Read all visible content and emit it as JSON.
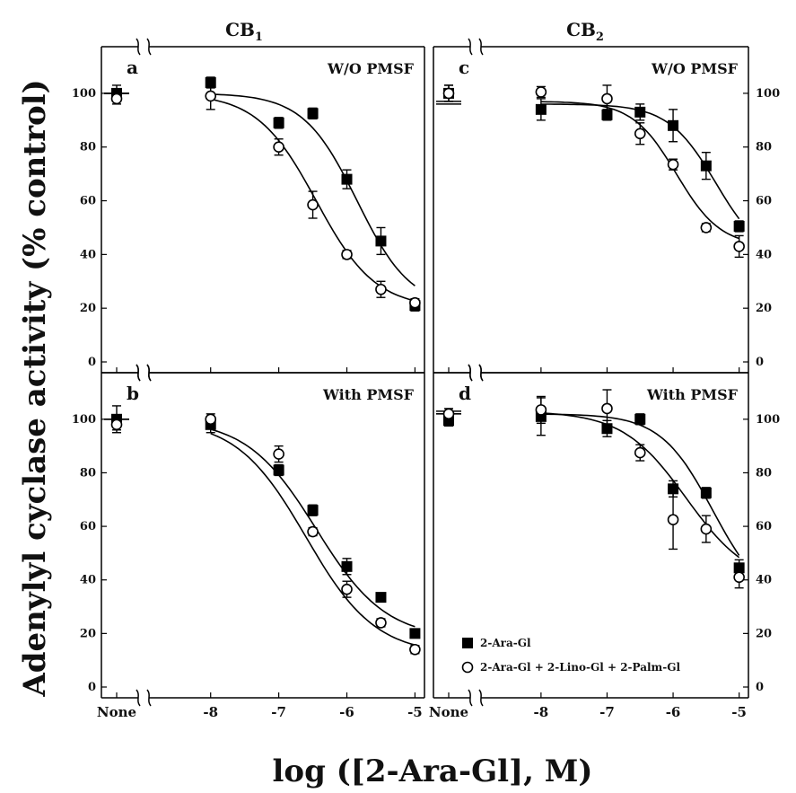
{
  "chart_data": {
    "type": "scatter",
    "ylabel": "Adenylyl cyclase activity (% control)",
    "xlabel": "log ([2-Ara-Gl], M)",
    "columns": [
      {
        "title": "CB",
        "subscript": "1"
      },
      {
        "title": "CB",
        "subscript": "2"
      }
    ],
    "x_ticks": [
      "None",
      "-8",
      "-7",
      "-6",
      "-5"
    ],
    "y_ticks": [
      "0",
      "20",
      "40",
      "60",
      "80",
      "100"
    ],
    "ylim": [
      0,
      110
    ],
    "xlim": [
      -8.8,
      -4.9
    ],
    "legend": [
      {
        "label": "2-Ara-Gl",
        "marker": "filled-square"
      },
      {
        "label": "2-Ara-Gl + 2-Lino-Gl + 2-Palm-Gl",
        "marker": "open-circle"
      }
    ],
    "panels": [
      {
        "letter": "a",
        "condition": "W/O PMSF",
        "receptor": "CB1",
        "series": [
          {
            "marker": "filled-square",
            "none": {
              "y": 100,
              "err": 3
            },
            "points": [
              {
                "x": -8,
                "y": 104,
                "err": 2
              },
              {
                "x": -7,
                "y": 89,
                "err": 2
              },
              {
                "x": -6.5,
                "y": 92.5,
                "err": 2
              },
              {
                "x": -6,
                "y": 68,
                "err": 3.5
              },
              {
                "x": -5.5,
                "y": 45,
                "err": 5
              },
              {
                "x": -5,
                "y": 21,
                "err": 2
              }
            ],
            "fit": {
              "top": 100,
              "bottom": 20,
              "logec50": -5.85,
              "hill": 1.1
            }
          },
          {
            "marker": "open-circle",
            "none": {
              "y": 98,
              "err": 2
            },
            "points": [
              {
                "x": -8,
                "y": 99,
                "err": 5
              },
              {
                "x": -7,
                "y": 80,
                "err": 3
              },
              {
                "x": -6.5,
                "y": 58.5,
                "err": 5
              },
              {
                "x": -6,
                "y": 40,
                "err": 1.5
              },
              {
                "x": -5.5,
                "y": 27,
                "err": 3
              },
              {
                "x": -5,
                "y": 22,
                "err": 1.5
              }
            ],
            "fit": {
              "top": 100,
              "bottom": 20,
              "logec50": -6.45,
              "hill": 1.0
            }
          }
        ]
      },
      {
        "letter": "b",
        "condition": "With PMSF",
        "receptor": "CB1",
        "series": [
          {
            "marker": "filled-square",
            "none": {
              "y": 100,
              "err": 5
            },
            "points": [
              {
                "x": -8,
                "y": 98,
                "err": 3
              },
              {
                "x": -7,
                "y": 81,
                "err": 2
              },
              {
                "x": -6.5,
                "y": 66,
                "err": 2
              },
              {
                "x": -6,
                "y": 45,
                "err": 3
              },
              {
                "x": -5.5,
                "y": 33.5,
                "err": 1.5
              },
              {
                "x": -5,
                "y": 20,
                "err": 1.5
              }
            ],
            "fit": {
              "top": 100,
              "bottom": 18,
              "logec50": -6.45,
              "hill": 0.85
            }
          },
          {
            "marker": "open-circle",
            "none": {
              "y": 98,
              "err": 2
            },
            "points": [
              {
                "x": -8,
                "y": 100,
                "err": 2
              },
              {
                "x": -7,
                "y": 87,
                "err": 3
              },
              {
                "x": -6.5,
                "y": 58,
                "err": 1.5
              },
              {
                "x": -6,
                "y": 36.5,
                "err": 3
              },
              {
                "x": -5.5,
                "y": 24,
                "err": 1.5
              },
              {
                "x": -5,
                "y": 14,
                "err": 1.5
              }
            ],
            "fit": {
              "top": 100,
              "bottom": 12,
              "logec50": -6.6,
              "hill": 0.85
            }
          }
        ]
      },
      {
        "letter": "c",
        "condition": "W/O PMSF",
        "receptor": "CB2",
        "series": [
          {
            "marker": "filled-square",
            "none": {
              "y": 100,
              "err": 3
            },
            "points": [
              {
                "x": -8,
                "y": 94,
                "err": 4
              },
              {
                "x": -7,
                "y": 92,
                "err": 2
              },
              {
                "x": -6.5,
                "y": 93,
                "err": 3
              },
              {
                "x": -6,
                "y": 88,
                "err": 6
              },
              {
                "x": -5.5,
                "y": 73,
                "err": 5
              },
              {
                "x": -5,
                "y": 50.5,
                "err": 2
              }
            ],
            "fit": {
              "top": 96,
              "bottom": 37,
              "logec50": -5.35,
              "hill": 1.2
            }
          },
          {
            "marker": "open-circle",
            "none": {
              "y": 100,
              "err": 3
            },
            "points": [
              {
                "x": -8,
                "y": 100.5,
                "err": 2
              },
              {
                "x": -7,
                "y": 98,
                "err": 5
              },
              {
                "x": -6.5,
                "y": 85,
                "err": 4
              },
              {
                "x": -6,
                "y": 73.5,
                "err": 2
              },
              {
                "x": -5.5,
                "y": 50,
                "err": 1.5
              },
              {
                "x": -5,
                "y": 43,
                "err": 4
              }
            ],
            "fit": {
              "top": 97,
              "bottom": 43,
              "logec50": -5.95,
              "hill": 1.3
            }
          }
        ]
      },
      {
        "letter": "d",
        "condition": "With PMSF",
        "receptor": "CB2",
        "series": [
          {
            "marker": "filled-square",
            "none": {
              "y": 99.5,
              "err": 2
            },
            "points": [
              {
                "x": -8,
                "y": 101,
                "err": 7
              },
              {
                "x": -7,
                "y": 96.5,
                "err": 3
              },
              {
                "x": -6.5,
                "y": 100,
                "err": 2
              },
              {
                "x": -6,
                "y": 74,
                "err": 3
              },
              {
                "x": -5.5,
                "y": 72.5,
                "err": 2
              },
              {
                "x": -5,
                "y": 44.5,
                "err": 3
              }
            ],
            "fit": {
              "top": 102,
              "bottom": 30,
              "logec50": -5.4,
              "hill": 1.1
            }
          },
          {
            "marker": "open-circle",
            "none": {
              "y": 102,
              "err": 2
            },
            "points": [
              {
                "x": -8,
                "y": 103.5,
                "err": 5
              },
              {
                "x": -7,
                "y": 104,
                "err": 7
              },
              {
                "x": -6.5,
                "y": 87.5,
                "err": 3
              },
              {
                "x": -6,
                "y": 62.5,
                "err": 11
              },
              {
                "x": -5.5,
                "y": 59,
                "err": 5
              },
              {
                "x": -5,
                "y": 41,
                "err": 4
              }
            ],
            "fit": {
              "top": 103,
              "bottom": 38,
              "logec50": -5.8,
              "hill": 0.9
            }
          }
        ]
      }
    ]
  }
}
